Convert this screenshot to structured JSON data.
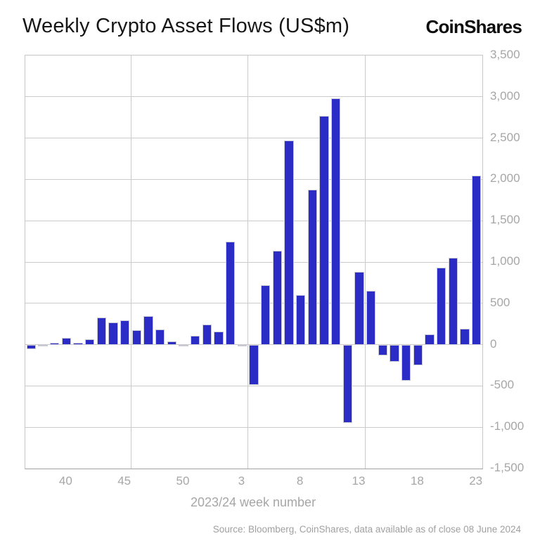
{
  "header": {
    "title": "Weekly Crypto Asset Flows (US$m)",
    "logo": "CoinShares"
  },
  "chart_data": {
    "type": "bar",
    "title": "Weekly Crypto Asset Flows (US$m)",
    "xlabel": "2023/24 week number",
    "ylabel": "",
    "x": [
      37,
      38,
      39,
      40,
      41,
      42,
      43,
      44,
      45,
      46,
      47,
      48,
      49,
      50,
      51,
      52,
      1,
      2,
      3,
      4,
      5,
      6,
      7,
      8,
      9,
      10,
      11,
      12,
      13,
      14,
      15,
      16,
      17,
      18,
      19,
      20,
      21,
      22,
      23
    ],
    "values": [
      -55,
      -15,
      25,
      80,
      20,
      66,
      330,
      265,
      295,
      176,
      346,
      185,
      43,
      -15,
      105,
      245,
      160,
      1250,
      -21,
      -490,
      720,
      1140,
      2470,
      600,
      1880,
      2770,
      2980,
      -950,
      880,
      650,
      -130,
      -210,
      -440,
      -250,
      120,
      935,
      1050,
      190,
      2045
    ],
    "series_name": "Weekly crypto asset flows (US$m)",
    "ylim": [
      -1500,
      3500
    ],
    "y_ticks": [
      {
        "v": 3500,
        "label": "3,500"
      },
      {
        "v": 3000,
        "label": "3,000"
      },
      {
        "v": 2500,
        "label": "2,500"
      },
      {
        "v": 2000,
        "label": "2,000"
      },
      {
        "v": 1500,
        "label": "1,500"
      },
      {
        "v": 1000,
        "label": "1,000"
      },
      {
        "v": 500,
        "label": "500"
      },
      {
        "v": 0,
        "label": "0"
      },
      {
        "v": -500,
        "label": "-500"
      },
      {
        "v": -1000,
        "label": "-1,000"
      },
      {
        "v": -1500,
        "label": "-1,500"
      }
    ],
    "x_ticks": [
      {
        "week": 40,
        "label": "40"
      },
      {
        "week": 45,
        "label": "45"
      },
      {
        "week": 50,
        "label": "50"
      },
      {
        "week": 3,
        "label": "3"
      },
      {
        "week": 8,
        "label": "8"
      },
      {
        "week": 13,
        "label": "13"
      },
      {
        "week": 18,
        "label": "18"
      },
      {
        "week": 23,
        "label": "23"
      }
    ],
    "vgrid_weeks": [
      45,
      3,
      13,
      23
    ],
    "grid": true,
    "legend_position": "none",
    "bar_color": "#2b2bc6",
    "axis_text_color": "#a6a6a6"
  },
  "footer": {
    "source": "Source: Bloomberg, CoinShares, data available as of close 08 June 2024"
  }
}
